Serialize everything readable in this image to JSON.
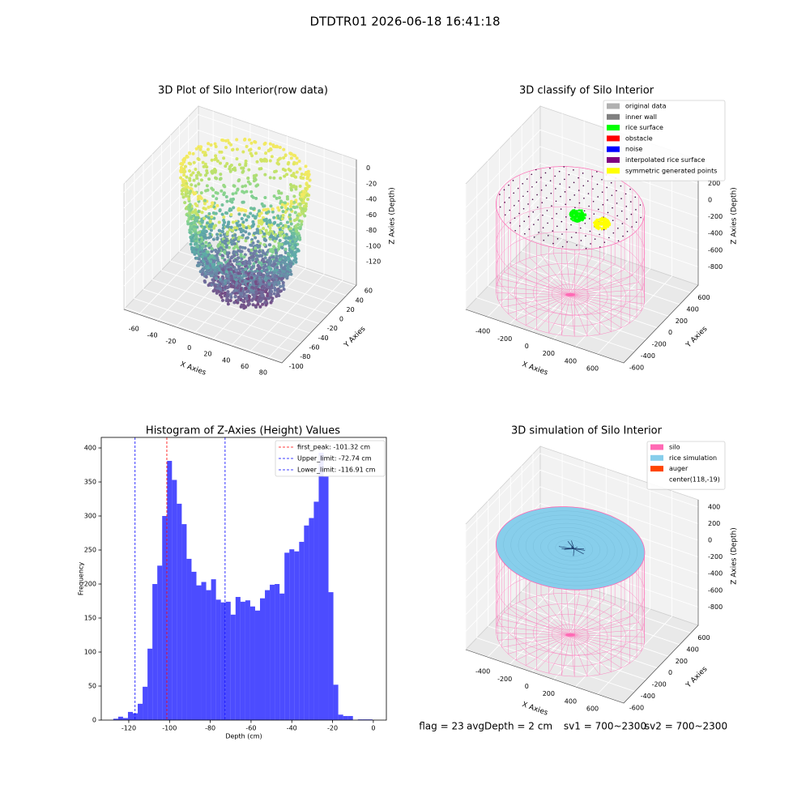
{
  "suptitle": "DTDTR01 2026-06-18 16:41:18",
  "chart_data": [
    {
      "type": "scatter3d",
      "title": "3D Plot of Silo Interior(row data)",
      "xlabel": "X Axies",
      "ylabel": "Y Axies",
      "zlabel": "Z Axies (Depth)",
      "xlim": [
        -76,
        95
      ],
      "ylim": [
        -103,
        62
      ],
      "zlim": [
        -150,
        11
      ],
      "xticks": [
        -60,
        -40,
        -20,
        0,
        20,
        40,
        60,
        80
      ],
      "yticks": [
        -100,
        -80,
        -60,
        -40,
        -20,
        0,
        20,
        40,
        60
      ],
      "zticks": [
        -120,
        -100,
        -80,
        -60,
        -40,
        -20,
        0
      ]
    },
    {
      "type": "wireframe3d",
      "title": "3D classify of Silo Interior",
      "xlabel": "X Axies",
      "ylabel": "Y Axies",
      "zlabel": "Z Axies (Depth)",
      "xlim": [
        -600,
        840
      ],
      "ylim": [
        -600,
        730
      ],
      "zlim": [
        -1020,
        486
      ],
      "xticks": [
        -400,
        -200,
        0,
        200,
        400,
        600
      ],
      "yticks": [
        -600,
        -400,
        -200,
        0,
        200,
        400,
        600
      ],
      "zticks": [
        -800,
        -600,
        -400,
        -200,
        0,
        200
      ],
      "legend": [
        {
          "name": "original data",
          "color": "#b0b0b0"
        },
        {
          "name": "inner wall",
          "color": "#808080"
        },
        {
          "name": "rice surface",
          "color": "#00ff00"
        },
        {
          "name": "obstacle",
          "color": "#ff0000"
        },
        {
          "name": "noise",
          "color": "#0000ff"
        },
        {
          "name": "interpolated rice surface",
          "color": "#800080"
        },
        {
          "name": "symmetric generated points",
          "color": "#ffff00"
        }
      ]
    },
    {
      "type": "histogram",
      "title": "Histogram of Z-Axies (Height) Values",
      "xlabel": "Depth (cm)",
      "ylabel": "Frequency",
      "color": "#0000ff",
      "alpha": 0.7,
      "xlim": [
        -133.5,
        6.4
      ],
      "ylim": [
        0,
        415.5
      ],
      "xticks": [
        -120,
        -100,
        -80,
        -60,
        -40,
        -20,
        0
      ],
      "yticks": [
        0,
        50,
        100,
        150,
        200,
        250,
        300,
        350,
        400
      ],
      "bins": [
        -127.6,
        -125.2,
        -122.8,
        -120.4,
        -118,
        -115.6,
        -113.2,
        -110.8,
        -108.4,
        -106,
        -103.6,
        -101.2,
        -98.8,
        -96.4,
        -94,
        -91.6,
        -89.2,
        -86.8,
        -84.4,
        -82,
        -79.6,
        -77.2,
        -74.8,
        -72.4,
        -70,
        -67.6,
        -65.2,
        -62.8,
        -60.4,
        -58,
        -55.6,
        -53.2,
        -50.8,
        -48.4,
        -46,
        -43.6,
        -41.2,
        -38.8,
        -36.4,
        -34,
        -31.6,
        -29.2,
        -26.8,
        -24.4,
        -22,
        -19.6,
        -17.2,
        -14.8,
        -12.4,
        -10,
        -7.6,
        -5.2,
        -2.8,
        -0.4
      ],
      "counts": [
        2,
        5,
        3,
        12,
        10,
        24,
        49,
        105,
        200,
        227,
        300,
        381,
        353,
        318,
        288,
        237,
        218,
        198,
        203,
        191,
        207,
        177,
        173,
        174,
        155,
        181,
        174,
        176,
        167,
        161,
        179,
        191,
        199,
        200,
        186,
        246,
        251,
        248,
        262,
        286,
        297,
        321,
        393,
        358,
        188,
        52,
        8,
        6,
        6,
        0,
        1,
        1,
        1
      ],
      "vlines": [
        {
          "name": "first_peak: -101.32 cm",
          "value": -101.32,
          "color": "#ff0000"
        },
        {
          "name": "Upper_limit: -72.74 cm",
          "value": -72.74,
          "color": "#0000ff"
        },
        {
          "name": "Lower_limit: -116.91 cm",
          "value": -116.91,
          "color": "#0000ff"
        }
      ],
      "legend_loc": "upper right"
    },
    {
      "type": "surface3d",
      "title": "3D simulation of Silo Interior",
      "xlabel": "X Axies",
      "ylabel": "Y Axies",
      "zlabel": "Z Axies (Depth)",
      "xlim": [
        -600,
        840
      ],
      "ylim": [
        -600,
        730
      ],
      "zlim": [
        -1020,
        486
      ],
      "xticks": [
        -400,
        -200,
        0,
        200,
        400,
        600
      ],
      "yticks": [
        -600,
        -400,
        -200,
        0,
        200,
        400,
        600
      ],
      "zticks": [
        -800,
        -600,
        -400,
        -200,
        0,
        200,
        400
      ],
      "legend": [
        {
          "name": "silo",
          "color": "#ff69b4"
        },
        {
          "name": "rice simulation",
          "color": "#87ceeb"
        },
        {
          "name": "auger",
          "color": "#ff4500"
        },
        {
          "name": "center(118,-19)",
          "color": "#ffffff"
        }
      ]
    }
  ],
  "footer": [
    "flag = 23",
    "avgDepth = 2 cm",
    "sv1 = 700~2300",
    "sv2 = 700~2300"
  ]
}
